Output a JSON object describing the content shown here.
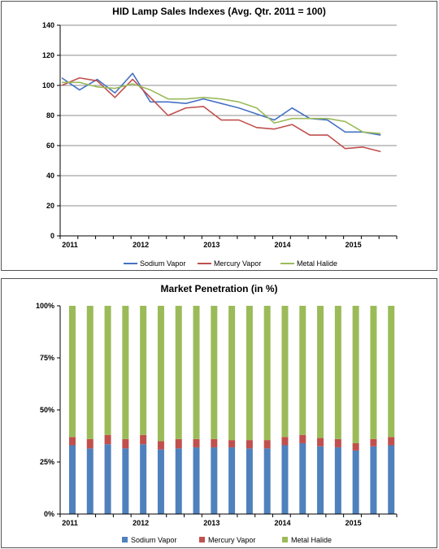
{
  "chart_data": [
    {
      "type": "line",
      "title": "HID Lamp Sales Indexes (Avg. Qtr. 2011 = 100)",
      "x_tick_labels": [
        "2011",
        "2012",
        "2013",
        "2014",
        "2015"
      ],
      "ylim": [
        0,
        140
      ],
      "y_ticks": [
        0,
        20,
        40,
        60,
        80,
        100,
        120,
        140
      ],
      "grid": "horizontal",
      "legend_position": "bottom",
      "series": [
        {
          "name": "Sodium Vapor",
          "color": "#4572C4",
          "values": [
            105,
            97,
            104,
            95,
            108,
            89,
            89,
            88,
            91,
            88,
            85,
            81,
            77,
            85,
            78,
            77,
            69,
            69,
            67
          ]
        },
        {
          "name": "Mercury Vapor",
          "color": "#C0504D",
          "values": [
            100,
            105,
            103,
            92,
            104,
            92,
            80,
            85,
            86,
            77,
            77,
            72,
            71,
            74,
            67,
            67,
            58,
            59,
            56
          ]
        },
        {
          "name": "Metal Halide",
          "color": "#9BBB59",
          "values": [
            102,
            102,
            99,
            98,
            101,
            97,
            91,
            91,
            92,
            91,
            89,
            85,
            75,
            78,
            78,
            78,
            76,
            69,
            68
          ]
        }
      ]
    },
    {
      "type": "bar",
      "stacked": true,
      "title": "Market Penetration (in %)",
      "x_tick_labels": [
        "2011",
        "2012",
        "2013",
        "2014",
        "2015"
      ],
      "ylim": [
        0,
        100
      ],
      "y_ticks": [
        "0%",
        "25%",
        "50%",
        "75%",
        "100%"
      ],
      "legend_position": "bottom",
      "series": [
        {
          "name": "Sodium Vapor",
          "color": "#4F81BD",
          "values": [
            33,
            31.5,
            33.5,
            31.5,
            33.5,
            31,
            31.5,
            32,
            32,
            32,
            31.5,
            31.5,
            33,
            34,
            32.5,
            32,
            30.5,
            32.5,
            33
          ]
        },
        {
          "name": "Mercury Vapor",
          "color": "#C0504D",
          "values": [
            4,
            4.5,
            4.5,
            4.5,
            4.5,
            4,
            4.5,
            4,
            4,
            3.5,
            4,
            4,
            4,
            4,
            4,
            4,
            3.5,
            3.5,
            4
          ]
        },
        {
          "name": "Metal Halide",
          "color": "#9BBB59",
          "values": [
            63,
            64,
            62,
            64,
            62,
            65,
            64,
            64,
            64,
            64.5,
            64.5,
            64.5,
            63,
            62,
            63.5,
            64,
            66,
            64,
            63
          ]
        }
      ]
    }
  ]
}
